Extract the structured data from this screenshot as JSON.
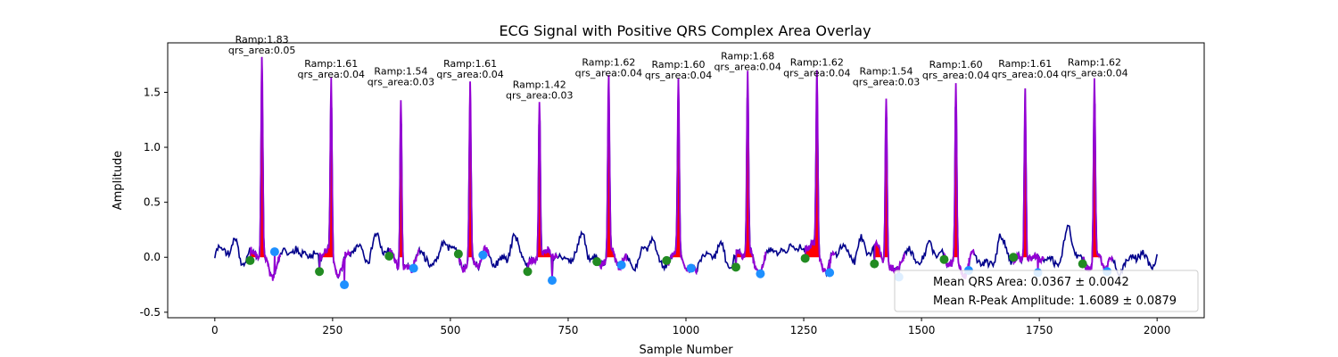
{
  "chart_data": {
    "type": "line",
    "title": "ECG Signal with Positive QRS Complex Area Overlay",
    "xlabel": "Sample Number",
    "ylabel": "Amplitude",
    "xlim": [
      -100,
      2100
    ],
    "ylim": [
      -0.55,
      1.95
    ],
    "xticks": [
      0,
      250,
      500,
      750,
      1000,
      1250,
      1500,
      1750,
      2000
    ],
    "yticks": [
      -0.5,
      0.0,
      0.5,
      1.0,
      1.5
    ],
    "xtick_labels": [
      "0",
      "250",
      "500",
      "750",
      "1000",
      "1250",
      "1500",
      "1750",
      "2000"
    ],
    "ytick_labels": [
      "-0.5",
      "0.0",
      "0.5",
      "1.0",
      "1.5"
    ],
    "colors": {
      "signal": "#00008b",
      "qrs_segment": "#9400d3",
      "qrs_fill": "#ff0000",
      "q_onset_marker": "#228b22",
      "s_offset_marker": "#1e90ff"
    },
    "beats": [
      {
        "r_sample": 100,
        "q_sample": 75,
        "s_sample": 127,
        "ramp": 1.83,
        "qrs_area": 0.05,
        "q_amp": -0.03,
        "s_amp": 0.05,
        "label1": "Ramp:1.83",
        "label2": "qrs_area:0.05"
      },
      {
        "r_sample": 247,
        "q_sample": 222,
        "s_sample": 275,
        "ramp": 1.61,
        "qrs_area": 0.04,
        "q_amp": -0.13,
        "s_amp": -0.25,
        "label1": "Ramp:1.61",
        "label2": "qrs_area:0.04"
      },
      {
        "r_sample": 395,
        "q_sample": 370,
        "s_sample": 422,
        "ramp": 1.54,
        "qrs_area": 0.03,
        "q_amp": 0.01,
        "s_amp": -0.1,
        "label1": "Ramp:1.54",
        "label2": "qrs_area:0.03"
      },
      {
        "r_sample": 542,
        "q_sample": 517,
        "s_sample": 569,
        "ramp": 1.61,
        "qrs_area": 0.04,
        "q_amp": 0.03,
        "s_amp": 0.02,
        "label1": "Ramp:1.61",
        "label2": "qrs_area:0.04"
      },
      {
        "r_sample": 689,
        "q_sample": 664,
        "s_sample": 716,
        "ramp": 1.42,
        "qrs_area": 0.03,
        "q_amp": -0.13,
        "s_amp": -0.21,
        "label1": "Ramp:1.42",
        "label2": "qrs_area:0.03"
      },
      {
        "r_sample": 836,
        "q_sample": 811,
        "s_sample": 863,
        "ramp": 1.62,
        "qrs_area": 0.04,
        "q_amp": -0.04,
        "s_amp": -0.07,
        "label1": "Ramp:1.62",
        "label2": "qrs_area:0.04"
      },
      {
        "r_sample": 984,
        "q_sample": 959,
        "s_sample": 1011,
        "ramp": 1.6,
        "qrs_area": 0.04,
        "q_amp": -0.03,
        "s_amp": -0.1,
        "label1": "Ramp:1.60",
        "label2": "qrs_area:0.04"
      },
      {
        "r_sample": 1131,
        "q_sample": 1106,
        "s_sample": 1158,
        "ramp": 1.68,
        "qrs_area": 0.04,
        "q_amp": -0.09,
        "s_amp": -0.15,
        "label1": "Ramp:1.68",
        "label2": "qrs_area:0.04"
      },
      {
        "r_sample": 1278,
        "q_sample": 1253,
        "s_sample": 1305,
        "ramp": 1.62,
        "qrs_area": 0.04,
        "q_amp": -0.01,
        "s_amp": -0.14,
        "label1": "Ramp:1.62",
        "label2": "qrs_area:0.04"
      },
      {
        "r_sample": 1425,
        "q_sample": 1400,
        "s_sample": 1452,
        "ramp": 1.54,
        "qrs_area": 0.03,
        "q_amp": -0.06,
        "s_amp": -0.18,
        "label1": "Ramp:1.54",
        "label2": "qrs_area:0.03"
      },
      {
        "r_sample": 1573,
        "q_sample": 1548,
        "s_sample": 1600,
        "ramp": 1.6,
        "qrs_area": 0.04,
        "q_amp": -0.02,
        "s_amp": -0.12,
        "label1": "Ramp:1.60",
        "label2": "qrs_area:0.04"
      },
      {
        "r_sample": 1720,
        "q_sample": 1695,
        "s_sample": 1747,
        "ramp": 1.61,
        "qrs_area": 0.04,
        "q_amp": 0.0,
        "s_amp": -0.14,
        "label1": "Ramp:1.61",
        "label2": "qrs_area:0.04"
      },
      {
        "r_sample": 1867,
        "q_sample": 1842,
        "s_sample": 1894,
        "ramp": 1.62,
        "qrs_area": 0.04,
        "q_amp": -0.06,
        "s_amp": -0.13,
        "label1": "Ramp:1.62",
        "label2": "qrs_area:0.04"
      }
    ],
    "signal_range": [
      0,
      2000
    ],
    "legend": {
      "location": "lower-right",
      "entries": [
        "Mean QRS Area: 0.0367 ± 0.0042",
        "Mean R-Peak Amplitude: 1.6089 ± 0.0879"
      ]
    }
  }
}
